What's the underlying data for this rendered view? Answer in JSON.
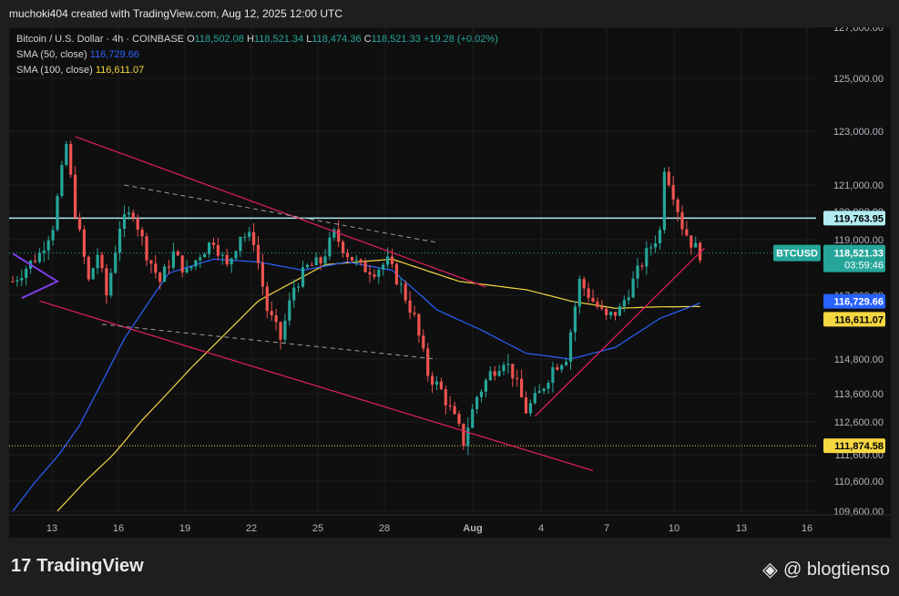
{
  "header": {
    "attribution": "muchoki404 created with TradingView.com, Aug 12, 2025 12:00 UTC"
  },
  "legend": {
    "symbol": "Bitcoin / U.S. Dollar · 4h · COINBASE",
    "o_label": "O",
    "o": "118,502.08",
    "h_label": "H",
    "h": "118,521.34",
    "l_label": "L",
    "l": "118,474.36",
    "c_label": "C",
    "c": "118,521.33",
    "change": "+19.28 (+0.02%)",
    "sma50_label": "SMA (50, close)",
    "sma50": "116,729.66",
    "sma100_label": "SMA (100, close)",
    "sma100": "116,611.07"
  },
  "price_labels": {
    "resistance": "119,763.95",
    "symbol": "BTCUSD",
    "last": "118,521.33",
    "countdown": "03:59:46",
    "sma50": "116,729.66",
    "sma100": "116,611.07",
    "support": "111,874.58"
  },
  "colors": {
    "up": "#26a69a",
    "down": "#ef5350",
    "sma50": "#2962ff",
    "sma100": "#f5d742",
    "trendline": "#e91e63",
    "resistance_line": "#b2ebf2",
    "support_line": "#f5d742",
    "flag": "#7b3fe4"
  },
  "footer": {
    "brand": "TradingView",
    "brand_mark": "17",
    "watermark": "@ blogtienso"
  },
  "chart_data": {
    "type": "candlestick",
    "timeframe": "4h",
    "x_ticks": [
      "13",
      "16",
      "19",
      "22",
      "25",
      "28",
      "Aug",
      "4",
      "7",
      "10",
      "13",
      "16"
    ],
    "y_ticks": [
      127000,
      125000,
      123000,
      121000,
      120000,
      119000,
      117000,
      114800,
      113600,
      112600,
      111600,
      110600,
      109600
    ],
    "y_tick_labels": [
      "127,000.00",
      "125,000.00",
      "123,000.00",
      "121,000.00",
      "120,000.00",
      "119,000.00",
      "117,000.00",
      "114,800.00",
      "113,600.00",
      "112,600.00",
      "111,600.00",
      "110,600.00",
      "109,600.00"
    ],
    "horizontal_levels": [
      119763.95,
      111874.58
    ],
    "close_series_anchors": [
      [
        0,
        117500
      ],
      [
        3,
        118000
      ],
      [
        6,
        118500
      ],
      [
        9,
        119500
      ],
      [
        12,
        122500
      ],
      [
        14,
        120000
      ],
      [
        17,
        117500
      ],
      [
        19,
        118500
      ],
      [
        21,
        117000
      ],
      [
        24,
        119500
      ],
      [
        27,
        120000
      ],
      [
        30,
        118500
      ],
      [
        33,
        117500
      ],
      [
        36,
        118500
      ],
      [
        39,
        117800
      ],
      [
        42,
        118500
      ],
      [
        45,
        119000
      ],
      [
        48,
        118000
      ],
      [
        51,
        119200
      ],
      [
        54,
        119000
      ],
      [
        57,
        116500
      ],
      [
        60,
        115500
      ],
      [
        63,
        117300
      ],
      [
        66,
        118000
      ],
      [
        69,
        118200
      ],
      [
        72,
        119200
      ],
      [
        75,
        118500
      ],
      [
        78,
        118000
      ],
      [
        81,
        117900
      ],
      [
        84,
        118200
      ],
      [
        87,
        117300
      ],
      [
        90,
        116200
      ],
      [
        93,
        114300
      ],
      [
        96,
        113700
      ],
      [
        99,
        112700
      ],
      [
        101,
        112000
      ],
      [
        104,
        113500
      ],
      [
        107,
        114300
      ],
      [
        110,
        114800
      ],
      [
        112,
        114300
      ],
      [
        115,
        113000
      ],
      [
        118,
        113600
      ],
      [
        121,
        114500
      ],
      [
        124,
        114900
      ],
      [
        127,
        117500
      ],
      [
        130,
        116800
      ],
      [
        133,
        116200
      ],
      [
        136,
        116500
      ],
      [
        139,
        117500
      ],
      [
        142,
        118500
      ],
      [
        145,
        119300
      ],
      [
        146,
        121700
      ],
      [
        148,
        120700
      ],
      [
        150,
        119500
      ],
      [
        152,
        118900
      ],
      [
        154,
        118500
      ]
    ],
    "sma50_anchors": [
      [
        0,
        109600
      ],
      [
        15,
        112500
      ],
      [
        25,
        115500
      ],
      [
        35,
        117800
      ],
      [
        45,
        118300
      ],
      [
        55,
        118200
      ],
      [
        65,
        117900
      ],
      [
        75,
        118200
      ],
      [
        85,
        117900
      ],
      [
        95,
        116500
      ],
      [
        105,
        115800
      ],
      [
        115,
        115000
      ],
      [
        125,
        114800
      ],
      [
        135,
        115200
      ],
      [
        145,
        116200
      ],
      [
        154,
        116730
      ]
    ],
    "sma100_anchors": [
      [
        10,
        109600
      ],
      [
        25,
        112000
      ],
      [
        40,
        114500
      ],
      [
        55,
        116800
      ],
      [
        70,
        118100
      ],
      [
        85,
        118300
      ],
      [
        100,
        117500
      ],
      [
        115,
        117200
      ],
      [
        125,
        116800
      ],
      [
        135,
        116550
      ],
      [
        145,
        116600
      ],
      [
        154,
        116611
      ]
    ],
    "trendlines": [
      {
        "name": "channel-upper",
        "from": [
          14,
          122800
        ],
        "to": [
          106,
          117300
        ]
      },
      {
        "name": "channel-lower",
        "from": [
          6,
          116800
        ],
        "to": [
          130,
          111000
        ]
      },
      {
        "name": "ascending-support",
        "from": [
          117,
          112800
        ],
        "to": [
          155,
          118700
        ]
      }
    ],
    "dashed_lines": [
      {
        "name": "mid-upper",
        "from": [
          25,
          121000
        ],
        "to": [
          95,
          118900
        ]
      },
      {
        "name": "mid-lower",
        "from": [
          20,
          116000
        ],
        "to": [
          95,
          114800
        ]
      }
    ]
  }
}
